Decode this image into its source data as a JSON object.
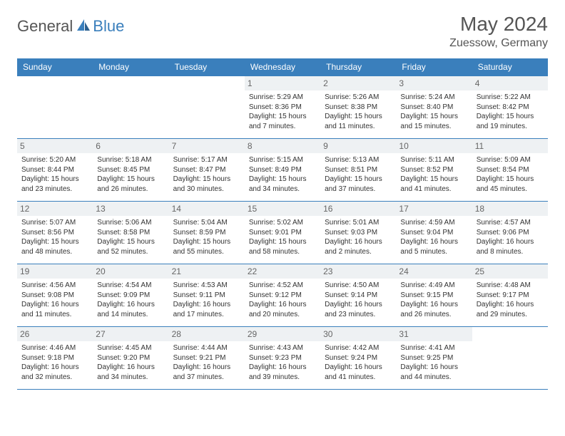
{
  "logo": {
    "general": "General",
    "blue": "Blue"
  },
  "title": "May 2024",
  "location": "Zuessow, Germany",
  "colors": {
    "header_bg": "#3a7fbc",
    "header_text": "#ffffff",
    "border": "#3a7fbc",
    "daynum_bg": "#eef1f3",
    "text": "#333333",
    "title_color": "#555555",
    "bg": "#ffffff"
  },
  "weekdays": [
    "Sunday",
    "Monday",
    "Tuesday",
    "Wednesday",
    "Thursday",
    "Friday",
    "Saturday"
  ],
  "weeks": [
    [
      null,
      null,
      null,
      {
        "n": "1",
        "sr": "5:29 AM",
        "ss": "8:36 PM",
        "dl": "15 hours and 7 minutes."
      },
      {
        "n": "2",
        "sr": "5:26 AM",
        "ss": "8:38 PM",
        "dl": "15 hours and 11 minutes."
      },
      {
        "n": "3",
        "sr": "5:24 AM",
        "ss": "8:40 PM",
        "dl": "15 hours and 15 minutes."
      },
      {
        "n": "4",
        "sr": "5:22 AM",
        "ss": "8:42 PM",
        "dl": "15 hours and 19 minutes."
      }
    ],
    [
      {
        "n": "5",
        "sr": "5:20 AM",
        "ss": "8:44 PM",
        "dl": "15 hours and 23 minutes."
      },
      {
        "n": "6",
        "sr": "5:18 AM",
        "ss": "8:45 PM",
        "dl": "15 hours and 26 minutes."
      },
      {
        "n": "7",
        "sr": "5:17 AM",
        "ss": "8:47 PM",
        "dl": "15 hours and 30 minutes."
      },
      {
        "n": "8",
        "sr": "5:15 AM",
        "ss": "8:49 PM",
        "dl": "15 hours and 34 minutes."
      },
      {
        "n": "9",
        "sr": "5:13 AM",
        "ss": "8:51 PM",
        "dl": "15 hours and 37 minutes."
      },
      {
        "n": "10",
        "sr": "5:11 AM",
        "ss": "8:52 PM",
        "dl": "15 hours and 41 minutes."
      },
      {
        "n": "11",
        "sr": "5:09 AM",
        "ss": "8:54 PM",
        "dl": "15 hours and 45 minutes."
      }
    ],
    [
      {
        "n": "12",
        "sr": "5:07 AM",
        "ss": "8:56 PM",
        "dl": "15 hours and 48 minutes."
      },
      {
        "n": "13",
        "sr": "5:06 AM",
        "ss": "8:58 PM",
        "dl": "15 hours and 52 minutes."
      },
      {
        "n": "14",
        "sr": "5:04 AM",
        "ss": "8:59 PM",
        "dl": "15 hours and 55 minutes."
      },
      {
        "n": "15",
        "sr": "5:02 AM",
        "ss": "9:01 PM",
        "dl": "15 hours and 58 minutes."
      },
      {
        "n": "16",
        "sr": "5:01 AM",
        "ss": "9:03 PM",
        "dl": "16 hours and 2 minutes."
      },
      {
        "n": "17",
        "sr": "4:59 AM",
        "ss": "9:04 PM",
        "dl": "16 hours and 5 minutes."
      },
      {
        "n": "18",
        "sr": "4:57 AM",
        "ss": "9:06 PM",
        "dl": "16 hours and 8 minutes."
      }
    ],
    [
      {
        "n": "19",
        "sr": "4:56 AM",
        "ss": "9:08 PM",
        "dl": "16 hours and 11 minutes."
      },
      {
        "n": "20",
        "sr": "4:54 AM",
        "ss": "9:09 PM",
        "dl": "16 hours and 14 minutes."
      },
      {
        "n": "21",
        "sr": "4:53 AM",
        "ss": "9:11 PM",
        "dl": "16 hours and 17 minutes."
      },
      {
        "n": "22",
        "sr": "4:52 AM",
        "ss": "9:12 PM",
        "dl": "16 hours and 20 minutes."
      },
      {
        "n": "23",
        "sr": "4:50 AM",
        "ss": "9:14 PM",
        "dl": "16 hours and 23 minutes."
      },
      {
        "n": "24",
        "sr": "4:49 AM",
        "ss": "9:15 PM",
        "dl": "16 hours and 26 minutes."
      },
      {
        "n": "25",
        "sr": "4:48 AM",
        "ss": "9:17 PM",
        "dl": "16 hours and 29 minutes."
      }
    ],
    [
      {
        "n": "26",
        "sr": "4:46 AM",
        "ss": "9:18 PM",
        "dl": "16 hours and 32 minutes."
      },
      {
        "n": "27",
        "sr": "4:45 AM",
        "ss": "9:20 PM",
        "dl": "16 hours and 34 minutes."
      },
      {
        "n": "28",
        "sr": "4:44 AM",
        "ss": "9:21 PM",
        "dl": "16 hours and 37 minutes."
      },
      {
        "n": "29",
        "sr": "4:43 AM",
        "ss": "9:23 PM",
        "dl": "16 hours and 39 minutes."
      },
      {
        "n": "30",
        "sr": "4:42 AM",
        "ss": "9:24 PM",
        "dl": "16 hours and 41 minutes."
      },
      {
        "n": "31",
        "sr": "4:41 AM",
        "ss": "9:25 PM",
        "dl": "16 hours and 44 minutes."
      },
      null
    ]
  ],
  "labels": {
    "sunrise": "Sunrise: ",
    "sunset": "Sunset: ",
    "daylight": "Daylight: "
  }
}
